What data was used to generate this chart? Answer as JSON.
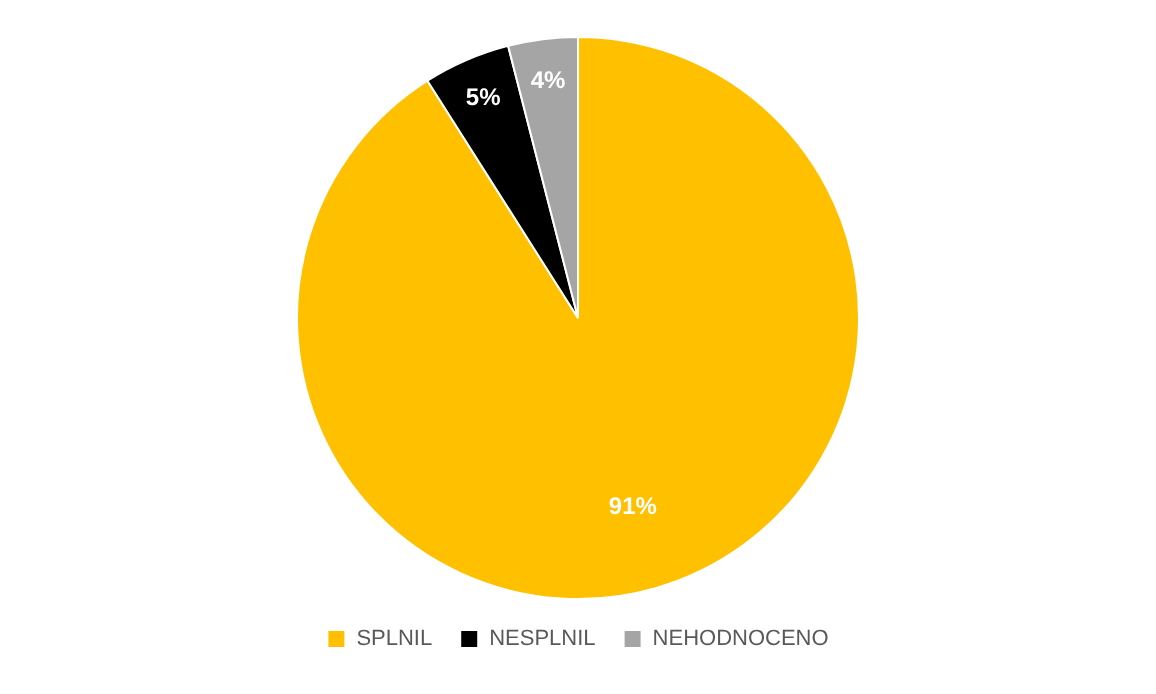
{
  "chart_data": {
    "type": "pie",
    "categories": [
      "SPLNIL",
      "NESPLNIL",
      "NEHODNOCENO"
    ],
    "values": [
      91,
      5,
      4
    ],
    "colors": [
      "#ffc000",
      "#000000",
      "#a5a5a5"
    ],
    "value_labels": [
      "91%",
      "5%",
      "4%"
    ],
    "legend": "bottom"
  }
}
